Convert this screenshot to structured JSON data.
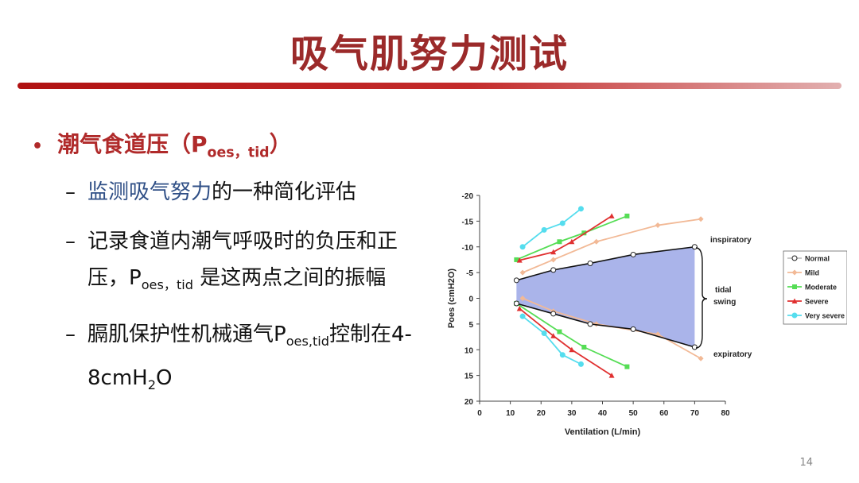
{
  "slide": {
    "title": "吸气肌努力测试",
    "page_number": "14"
  },
  "bullet": {
    "text": "潮气食道压（P",
    "sub": "oes，tid",
    "close": "）"
  },
  "items": [
    {
      "hl": "监测吸气努力",
      "rest": "的一种简化评估"
    },
    {
      "line1": "记录食道内潮气呼吸时的负压和正",
      "pre": "压，P",
      "sub": "oes，tid",
      "post": " 是这两点之间的振幅"
    },
    {
      "pre": "膈肌保护性机械通气P",
      "sub": "oes,tid",
      "mid": "控制在4-",
      "line2a": "8cmH",
      "line2sub": "2",
      "line2b": "O"
    }
  ],
  "chart_data": {
    "type": "line",
    "xlabel": "Ventilation (L/min)",
    "ylabel": "Poes (cmH2O)",
    "xlim": [
      0,
      80
    ],
    "ylim": [
      20,
      -20
    ],
    "x_ticks": [
      0,
      10,
      20,
      30,
      40,
      50,
      60,
      70,
      80
    ],
    "y_ticks": [
      -20,
      -15,
      -10,
      -5,
      0,
      5,
      10,
      15,
      20
    ],
    "legend_position": "right",
    "shaded_region_series": "Normal",
    "annotations": [
      "inspiratory",
      "tidal",
      "swing",
      "expiratory"
    ],
    "series": [
      {
        "name": "Normal",
        "color": "#c8c8c8",
        "marker": "circle",
        "inspiratory": [
          [
            12,
            -3.5
          ],
          [
            24,
            -5.5
          ],
          [
            36,
            -6.8
          ],
          [
            50,
            -8.5
          ],
          [
            70,
            -10
          ]
        ],
        "expiratory": [
          [
            12,
            1
          ],
          [
            24,
            3
          ],
          [
            36,
            5
          ],
          [
            50,
            6
          ],
          [
            70,
            9.5
          ]
        ]
      },
      {
        "name": "Mild",
        "color": "#f2b996",
        "marker": "diamond",
        "inspiratory": [
          [
            14,
            -5
          ],
          [
            24,
            -7.5
          ],
          [
            38,
            -11
          ],
          [
            58,
            -14.2
          ],
          [
            72,
            -15.4
          ]
        ],
        "expiratory": [
          [
            14,
            0
          ],
          [
            24,
            2.5
          ],
          [
            38,
            5
          ],
          [
            58,
            7
          ],
          [
            72,
            11.7
          ]
        ]
      },
      {
        "name": "Moderate",
        "color": "#55dd55",
        "marker": "square",
        "inspiratory": [
          [
            12,
            -7.5
          ],
          [
            26,
            -11
          ],
          [
            34,
            -12.7
          ],
          [
            48,
            -16
          ]
        ],
        "expiratory": [
          [
            12,
            1
          ],
          [
            26,
            6.5
          ],
          [
            34,
            9.5
          ],
          [
            48,
            13.3
          ]
        ]
      },
      {
        "name": "Severe",
        "color": "#e03030",
        "marker": "triangle",
        "inspiratory": [
          [
            13,
            -7.4
          ],
          [
            24,
            -9
          ],
          [
            30,
            -11
          ],
          [
            43,
            -16
          ]
        ],
        "expiratory": [
          [
            13,
            2
          ],
          [
            24,
            7.3
          ],
          [
            30,
            10
          ],
          [
            43,
            15
          ]
        ]
      },
      {
        "name": "Very severe",
        "color": "#55ddee",
        "marker": "circle-filled",
        "inspiratory": [
          [
            14,
            -10
          ],
          [
            21,
            -13.3
          ],
          [
            27,
            -14.6
          ],
          [
            33,
            -17.4
          ]
        ],
        "expiratory": [
          [
            14,
            3.5
          ],
          [
            21,
            6.8
          ],
          [
            27,
            11
          ],
          [
            33,
            12.8
          ]
        ]
      }
    ]
  }
}
